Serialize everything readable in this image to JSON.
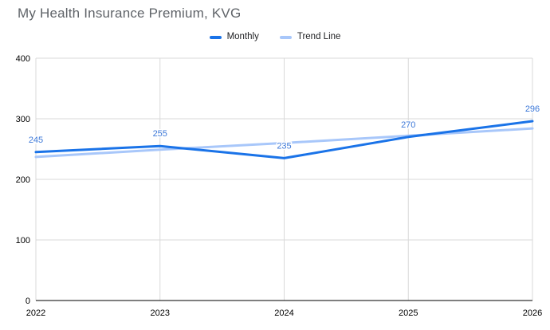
{
  "chart_data": {
    "type": "line",
    "title": "My Health Insurance Premium, KVG",
    "categories": [
      "2022",
      "2023",
      "2024",
      "2025",
      "2026"
    ],
    "series": [
      {
        "name": "Monthly",
        "color": "#1a73e8",
        "values": [
          245,
          255,
          235,
          270,
          296
        ],
        "show_labels": true
      },
      {
        "name": "Trend Line",
        "color": "#a8c7fa",
        "values": [
          237,
          249,
          260,
          272,
          284
        ],
        "show_labels": false
      }
    ],
    "data_labels": [
      "245",
      "255",
      "235",
      "270",
      "296"
    ],
    "xlabel": "",
    "ylabel": "",
    "ylim": [
      0,
      400
    ],
    "yticks": [
      0,
      100,
      200,
      300,
      400
    ],
    "grid": true,
    "legend_position": "top",
    "colors": {
      "label_text": "#3c78d8",
      "title_text": "#5f6368",
      "axis_text": "#000000",
      "gridline": "#d9d9d9",
      "axis_line": "#333333",
      "background": "#ffffff"
    }
  }
}
